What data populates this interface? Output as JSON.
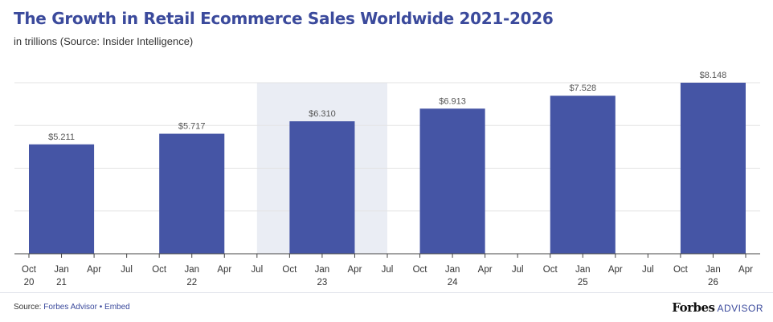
{
  "title": "The Growth in Retail Ecommerce Sales Worldwide 2021-2026",
  "subtitle": "in trillions (Source: Insider Intelligence)",
  "footer": {
    "source_label": "Source:",
    "source_link": "Forbes Advisor",
    "separator": "•",
    "embed_link": "Embed",
    "brand_primary": "Forbes",
    "brand_secondary": "ADVISOR"
  },
  "colors": {
    "bar": "#4555a5",
    "highlight": "#eaedf4",
    "grid": "#e3e3e3",
    "axis": "#444444",
    "label": "#555555",
    "title": "#3b4a9c"
  },
  "chart_data": {
    "type": "bar",
    "ylim": [
      0,
      8.148
    ],
    "grid": true,
    "values": [
      5.211,
      5.717,
      6.31,
      6.913,
      7.528,
      8.148
    ],
    "value_labels": [
      "$5.211",
      "$5.717",
      "$6.310",
      "$6.913",
      "$7.528",
      "$8.148"
    ],
    "bar_spans": [
      [
        0,
        2
      ],
      [
        4,
        6
      ],
      [
        8,
        10
      ],
      [
        12,
        14
      ],
      [
        16,
        18
      ],
      [
        20,
        22
      ]
    ],
    "highlight_span": [
      7,
      11
    ],
    "ticks": [
      {
        "month": "Oct",
        "year": "20"
      },
      {
        "month": "Jan",
        "year": "21"
      },
      {
        "month": "Apr",
        "year": ""
      },
      {
        "month": "Jul",
        "year": ""
      },
      {
        "month": "Oct",
        "year": ""
      },
      {
        "month": "Jan",
        "year": "22"
      },
      {
        "month": "Apr",
        "year": ""
      },
      {
        "month": "Jul",
        "year": ""
      },
      {
        "month": "Oct",
        "year": ""
      },
      {
        "month": "Jan",
        "year": "23"
      },
      {
        "month": "Apr",
        "year": ""
      },
      {
        "month": "Jul",
        "year": ""
      },
      {
        "month": "Oct",
        "year": ""
      },
      {
        "month": "Jan",
        "year": "24"
      },
      {
        "month": "Apr",
        "year": ""
      },
      {
        "month": "Jul",
        "year": ""
      },
      {
        "month": "Oct",
        "year": ""
      },
      {
        "month": "Jan",
        "year": "25"
      },
      {
        "month": "Apr",
        "year": ""
      },
      {
        "month": "Jul",
        "year": ""
      },
      {
        "month": "Oct",
        "year": ""
      },
      {
        "month": "Jan",
        "year": "26"
      },
      {
        "month": "Apr",
        "year": ""
      }
    ]
  }
}
